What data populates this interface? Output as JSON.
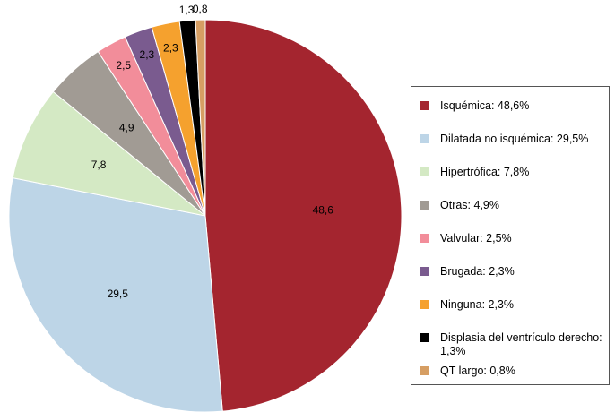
{
  "chart_data": {
    "type": "pie",
    "categories": [
      "Isquémica: 48,6%",
      "Dilatada no isquémica: 29,5%",
      "Hipertrófica: 7,8%",
      "Otras: 4,9%",
      "Valvular: 2,5%",
      "Brugada: 2,3%",
      "Ninguna: 2,3%",
      "Displasia del ventrículo derecho: 1,3%",
      "QT largo: 0,8%"
    ],
    "values": [
      48.6,
      29.5,
      7.8,
      4.9,
      2.5,
      2.3,
      2.3,
      1.3,
      0.8
    ],
    "value_labels": [
      "48,6",
      "29,5",
      "7,8",
      "4,9",
      "2,5",
      "2,3",
      "2,3",
      "1,3",
      "0,8"
    ],
    "colors": [
      "#a4252f",
      "#bdd5e7",
      "#d4e9c4",
      "#a19b94",
      "#f28d9a",
      "#7a5b8f",
      "#f5a12e",
      "#000000",
      "#d69e63"
    ],
    "legend": "right"
  }
}
